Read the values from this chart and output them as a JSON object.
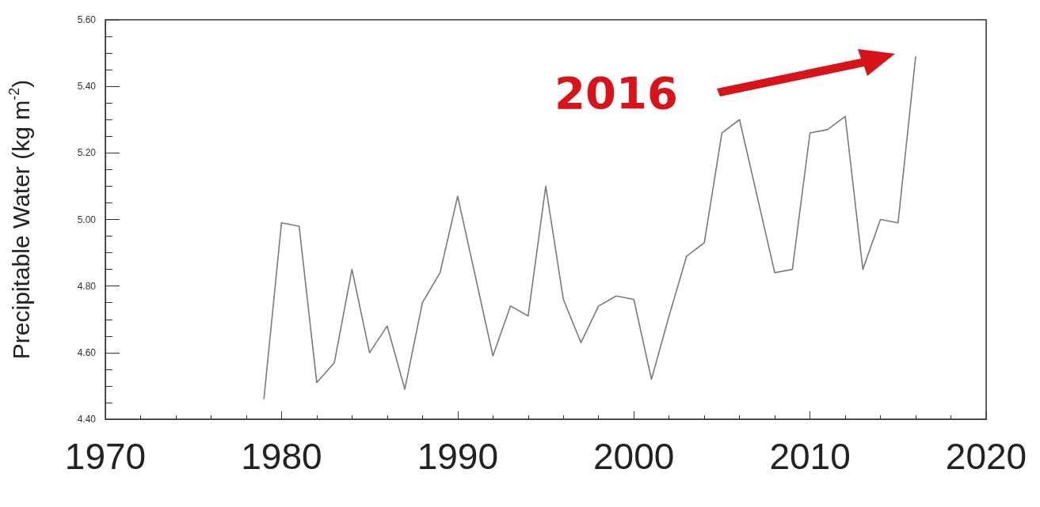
{
  "chart_data": {
    "type": "line",
    "ylabel": "Precipitable Water (kg m$^{-2}$)",
    "x": [
      1979,
      1980,
      1981,
      1982,
      1983,
      1984,
      1985,
      1986,
      1987,
      1988,
      1989,
      1990,
      1991,
      1992,
      1993,
      1994,
      1995,
      1996,
      1997,
      1998,
      1999,
      2000,
      2001,
      2002,
      2003,
      2004,
      2005,
      2006,
      2007,
      2008,
      2009,
      2010,
      2011,
      2012,
      2013,
      2014,
      2015,
      2016
    ],
    "series": [
      {
        "color": "#7a7a7a",
        "values": [
          4.46,
          4.99,
          4.98,
          4.51,
          4.57,
          4.85,
          4.6,
          4.68,
          4.49,
          4.75,
          4.84,
          5.07,
          4.83,
          4.59,
          4.74,
          4.71,
          5.1,
          4.76,
          4.63,
          4.74,
          4.77,
          4.76,
          4.52,
          4.71,
          4.89,
          4.93,
          5.26,
          5.3,
          5.07,
          4.84,
          4.85,
          5.26,
          5.27,
          5.31,
          4.85,
          5.0,
          4.99,
          5.49
        ]
      }
    ],
    "xlim": [
      1970,
      2020
    ],
    "xticks": [
      1970,
      1980,
      1990,
      2000,
      2010,
      2020
    ],
    "ylim": [
      4.4,
      5.6
    ],
    "yticks": [
      {
        "value": 4.4,
        "label": "4.40"
      },
      {
        "value": 4.6,
        "label": "4.60"
      },
      {
        "value": 4.8,
        "label": "4.80"
      },
      {
        "value": 5.0,
        "label": "5.00"
      },
      {
        "value": 5.2,
        "label": "5.20"
      },
      {
        "value": 5.4,
        "label": "5.40"
      },
      {
        "value": 5.6,
        "label": "5.60"
      }
    ],
    "annotations": [
      "2016"
    ],
    "grid": false,
    "marker": "none",
    "line_style": "solid"
  }
}
